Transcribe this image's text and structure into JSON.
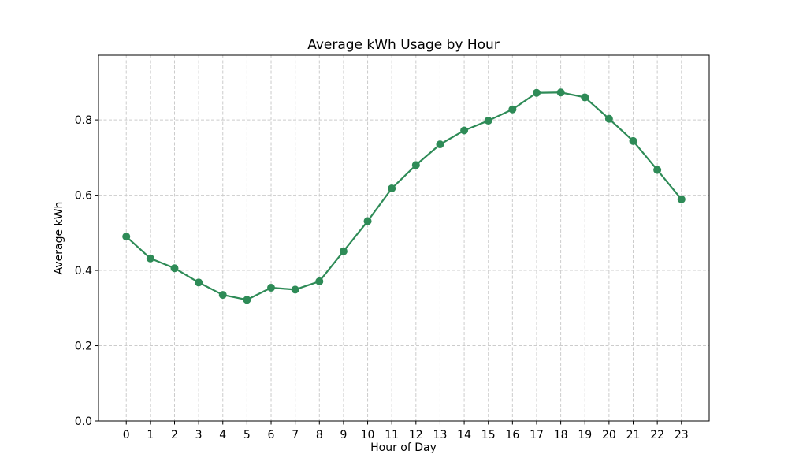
{
  "chart_data": {
    "type": "line",
    "title": "Average kWh Usage by Hour",
    "xlabel": "Hour of Day",
    "ylabel": "Average kWh",
    "x": [
      0,
      1,
      2,
      3,
      4,
      5,
      6,
      7,
      8,
      9,
      10,
      11,
      12,
      13,
      14,
      15,
      16,
      17,
      18,
      19,
      20,
      21,
      22,
      23
    ],
    "xtick_labels": [
      "0",
      "1",
      "2",
      "3",
      "4",
      "5",
      "6",
      "7",
      "8",
      "9",
      "10",
      "11",
      "12",
      "13",
      "14",
      "15",
      "16",
      "17",
      "18",
      "19",
      "20",
      "21",
      "22",
      "23"
    ],
    "series": [
      {
        "name": "Average kWh",
        "values": [
          0.49,
          0.432,
          0.406,
          0.368,
          0.335,
          0.322,
          0.354,
          0.349,
          0.371,
          0.451,
          0.531,
          0.618,
          0.68,
          0.735,
          0.772,
          0.798,
          0.828,
          0.872,
          0.873,
          0.86,
          0.803,
          0.744,
          0.667,
          0.589
        ]
      }
    ],
    "xlim": [
      -1.15,
      24.15
    ],
    "ylim": [
      0,
      0.972
    ],
    "yticks": [
      0.0,
      0.2,
      0.4,
      0.6,
      0.8
    ],
    "ytick_labels": [
      "0.0",
      "0.2",
      "0.4",
      "0.6",
      "0.8"
    ],
    "grid": true,
    "grid_style": "dashed",
    "legend": false,
    "colors": {
      "line": "#2e8b57",
      "marker": "#2e8b57",
      "grid": "#cccccc",
      "spine": "#000000",
      "background": "#ffffff"
    }
  }
}
